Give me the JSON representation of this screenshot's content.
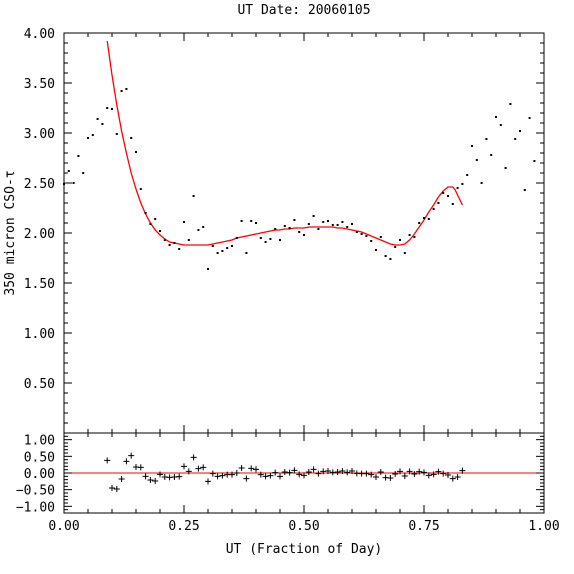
{
  "chart_data": [
    {
      "type": "scatter",
      "title": "UT Date: 20060105",
      "xlabel": "",
      "ylabel": "350 micron CSO-τ",
      "xlim": [
        0.0,
        1.0
      ],
      "ylim": [
        0.0,
        4.0
      ],
      "y_ticks": [
        "0.50",
        "1.00",
        "1.50",
        "2.00",
        "2.50",
        "3.00",
        "3.50",
        "4.00"
      ],
      "grid": false,
      "colors": {
        "points": "#000000",
        "fit": "#ff0000",
        "axes": "#000000"
      },
      "series": [
        {
          "marker": "dot",
          "x": [
            0.0,
            0.01,
            0.02,
            0.03,
            0.04,
            0.05,
            0.06,
            0.07,
            0.08,
            0.09,
            0.1,
            0.11,
            0.12,
            0.13,
            0.14,
            0.15,
            0.16,
            0.17,
            0.18,
            0.19,
            0.2,
            0.21,
            0.22,
            0.23,
            0.24,
            0.25,
            0.26,
            0.27,
            0.28,
            0.29,
            0.3,
            0.31,
            0.32,
            0.33,
            0.34,
            0.35,
            0.36,
            0.37,
            0.38,
            0.39,
            0.4,
            0.41,
            0.42,
            0.43,
            0.44,
            0.45,
            0.46,
            0.47,
            0.48,
            0.49,
            0.5,
            0.51,
            0.52,
            0.53,
            0.54,
            0.55,
            0.56,
            0.57,
            0.58,
            0.59,
            0.6,
            0.61,
            0.62,
            0.63,
            0.64,
            0.65,
            0.66,
            0.67,
            0.68,
            0.69,
            0.7,
            0.71,
            0.72,
            0.73,
            0.74,
            0.75,
            0.76,
            0.77,
            0.78,
            0.79,
            0.8,
            0.81,
            0.82,
            0.83,
            0.84,
            0.85,
            0.86,
            0.87,
            0.88,
            0.89,
            0.9,
            0.91,
            0.92,
            0.93,
            0.94,
            0.95,
            0.96,
            0.97,
            0.98
          ],
          "y": [
            2.49,
            2.62,
            2.5,
            2.77,
            2.6,
            2.95,
            2.98,
            3.14,
            3.09,
            3.25,
            3.24,
            2.99,
            3.42,
            3.44,
            2.95,
            2.81,
            2.44,
            2.2,
            2.09,
            2.14,
            2.02,
            1.93,
            1.88,
            1.9,
            1.84,
            2.11,
            1.93,
            2.37,
            2.03,
            2.06,
            1.64,
            1.87,
            1.8,
            1.82,
            1.85,
            1.87,
            1.95,
            2.12,
            1.8,
            2.12,
            2.1,
            1.95,
            1.91,
            1.94,
            2.04,
            1.93,
            2.07,
            2.05,
            2.13,
            2.01,
            1.98,
            2.09,
            2.17,
            2.04,
            2.11,
            2.12,
            2.08,
            2.08,
            2.11,
            2.06,
            2.09,
            2.01,
            1.99,
            1.97,
            1.92,
            1.83,
            1.96,
            1.77,
            1.74,
            1.86,
            1.93,
            1.8,
            1.98,
            1.96,
            2.1,
            2.15,
            2.14,
            2.24,
            2.3,
            2.4,
            2.37,
            2.29,
            2.45,
            2.49,
            2.58,
            2.87,
            2.73,
            2.5,
            2.94,
            2.78,
            3.16,
            3.08,
            2.65,
            3.29,
            2.94,
            3.02,
            2.43,
            3.15,
            2.72
          ]
        },
        {
          "marker": "line",
          "x": [
            0.09,
            0.1,
            0.11,
            0.12,
            0.13,
            0.14,
            0.15,
            0.16,
            0.17,
            0.18,
            0.19,
            0.2,
            0.21,
            0.22,
            0.23,
            0.24,
            0.25,
            0.26,
            0.27,
            0.28,
            0.29,
            0.3,
            0.31,
            0.32,
            0.33,
            0.34,
            0.35,
            0.36,
            0.37,
            0.38,
            0.39,
            0.4,
            0.41,
            0.42,
            0.43,
            0.44,
            0.45,
            0.46,
            0.47,
            0.48,
            0.49,
            0.5,
            0.51,
            0.52,
            0.53,
            0.54,
            0.55,
            0.56,
            0.57,
            0.58,
            0.59,
            0.6,
            0.61,
            0.62,
            0.63,
            0.64,
            0.65,
            0.66,
            0.67,
            0.68,
            0.69,
            0.7,
            0.71,
            0.72,
            0.73,
            0.74,
            0.75,
            0.76,
            0.77,
            0.78,
            0.79,
            0.8,
            0.81,
            0.815,
            0.82,
            0.83
          ],
          "y": [
            3.92,
            3.58,
            3.28,
            3.02,
            2.8,
            2.6,
            2.44,
            2.3,
            2.19,
            2.1,
            2.03,
            1.98,
            1.94,
            1.91,
            1.9,
            1.89,
            1.88,
            1.88,
            1.88,
            1.88,
            1.88,
            1.88,
            1.89,
            1.9,
            1.91,
            1.92,
            1.93,
            1.95,
            1.96,
            1.97,
            1.98,
            1.99,
            2.0,
            2.01,
            2.02,
            2.03,
            2.03,
            2.04,
            2.04,
            2.05,
            2.05,
            2.05,
            2.06,
            2.06,
            2.06,
            2.06,
            2.06,
            2.06,
            2.05,
            2.05,
            2.04,
            2.03,
            2.02,
            2.01,
            1.99,
            1.97,
            1.95,
            1.93,
            1.91,
            1.89,
            1.88,
            1.88,
            1.89,
            1.93,
            1.99,
            2.06,
            2.13,
            2.21,
            2.28,
            2.36,
            2.42,
            2.46,
            2.46,
            2.43,
            2.38,
            2.28
          ]
        }
      ]
    },
    {
      "type": "scatter",
      "title": "",
      "xlabel": "UT (Fraction of Day)",
      "ylabel": "",
      "xlim": [
        0.0,
        1.0
      ],
      "ylim": [
        -1.2,
        1.2
      ],
      "x_ticks": [
        "0.00",
        "0.25",
        "0.50",
        "0.75",
        "1.00"
      ],
      "y_ticks": [
        "−1.00",
        "−0.50",
        "0.00",
        "0.50",
        "1.00"
      ],
      "grid": false,
      "colors": {
        "points": "#000000",
        "zero_line": "#ff0000",
        "axes": "#000000"
      },
      "series": [
        {
          "marker": "plus",
          "x": [
            0.09,
            0.1,
            0.11,
            0.12,
            0.13,
            0.14,
            0.15,
            0.16,
            0.17,
            0.18,
            0.19,
            0.2,
            0.21,
            0.22,
            0.23,
            0.24,
            0.25,
            0.26,
            0.27,
            0.28,
            0.29,
            0.3,
            0.31,
            0.32,
            0.33,
            0.34,
            0.35,
            0.36,
            0.37,
            0.38,
            0.39,
            0.4,
            0.41,
            0.42,
            0.43,
            0.44,
            0.45,
            0.46,
            0.47,
            0.48,
            0.49,
            0.5,
            0.51,
            0.52,
            0.53,
            0.54,
            0.55,
            0.56,
            0.57,
            0.58,
            0.59,
            0.6,
            0.61,
            0.62,
            0.63,
            0.64,
            0.65,
            0.66,
            0.67,
            0.68,
            0.69,
            0.7,
            0.71,
            0.72,
            0.73,
            0.74,
            0.75,
            0.76,
            0.77,
            0.78,
            0.79,
            0.8,
            0.81,
            0.82,
            0.83
          ],
          "y": [
            0.38,
            -0.45,
            -0.48,
            -0.18,
            0.35,
            0.52,
            0.18,
            0.17,
            -0.1,
            -0.21,
            -0.24,
            -0.04,
            -0.12,
            -0.13,
            -0.12,
            -0.11,
            0.2,
            0.05,
            0.47,
            0.13,
            0.17,
            -0.25,
            -0.02,
            -0.1,
            -0.08,
            -0.05,
            -0.05,
            0.0,
            0.15,
            -0.17,
            0.14,
            0.11,
            -0.05,
            -0.1,
            -0.08,
            0.01,
            -0.1,
            0.03,
            0.01,
            0.08,
            -0.04,
            -0.07,
            0.03,
            0.11,
            -0.02,
            0.05,
            0.06,
            0.02,
            0.03,
            0.06,
            0.02,
            0.06,
            -0.01,
            -0.02,
            -0.02,
            -0.05,
            -0.12,
            0.03,
            -0.14,
            -0.15,
            -0.03,
            0.05,
            -0.09,
            0.05,
            -0.03,
            0.04,
            0.02,
            -0.07,
            -0.04,
            0.04,
            -0.02,
            -0.06,
            -0.17,
            -0.12,
            0.07
          ]
        }
      ]
    }
  ]
}
